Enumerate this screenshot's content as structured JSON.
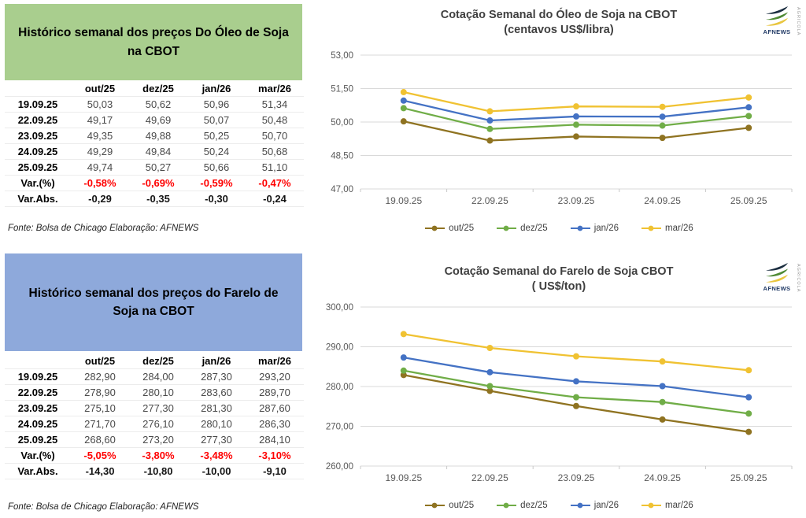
{
  "left_panel": {
    "sections": [
      {
        "header": "Histórico semanal dos preços Do Óleo de Soja na CBOT",
        "header_bg": "#A9CE8E",
        "source_note": "Fonte: Bolsa de Chicago Elaboração: AFNEWS",
        "table": {
          "columns": [
            "",
            "out/25",
            "dez/25",
            "jan/26",
            "mar/26"
          ],
          "rows": [
            {
              "label": "19.09.25",
              "values": [
                "50,03",
                "50,62",
                "50,96",
                "51,34"
              ],
              "style": "val"
            },
            {
              "label": "22.09.25",
              "values": [
                "49,17",
                "49,69",
                "50,07",
                "50,48"
              ],
              "style": "val"
            },
            {
              "label": "23.09.25",
              "values": [
                "49,35",
                "49,88",
                "50,25",
                "50,70"
              ],
              "style": "val"
            },
            {
              "label": "24.09.25",
              "values": [
                "49,29",
                "49,84",
                "50,24",
                "50,68"
              ],
              "style": "val"
            },
            {
              "label": "25.09.25",
              "values": [
                "49,74",
                "50,27",
                "50,66",
                "51,10"
              ],
              "style": "val"
            },
            {
              "label": "Var.(%)",
              "values": [
                "-0,58%",
                "-0,69%",
                "-0,59%",
                "-0,47%"
              ],
              "style": "pct"
            },
            {
              "label": "Var.Abs.",
              "values": [
                "-0,29",
                "-0,35",
                "-0,30",
                "-0,24"
              ],
              "style": "abs"
            }
          ]
        }
      },
      {
        "header": "Histórico semanal dos preços do Farelo de Soja na CBOT",
        "header_bg": "#8EA9DB",
        "source_note": "Fonte: Bolsa de Chicago Elaboração: AFNEWS",
        "table": {
          "columns": [
            "",
            "out/25",
            "dez/25",
            "jan/26",
            "mar/26"
          ],
          "rows": [
            {
              "label": "19.09.25",
              "values": [
                "282,90",
                "284,00",
                "287,30",
                "293,20"
              ],
              "style": "val"
            },
            {
              "label": "22.09.25",
              "values": [
                "278,90",
                "280,10",
                "283,60",
                "289,70"
              ],
              "style": "val"
            },
            {
              "label": "23.09.25",
              "values": [
                "275,10",
                "277,30",
                "281,30",
                "287,60"
              ],
              "style": "val"
            },
            {
              "label": "24.09.25",
              "values": [
                "271,70",
                "276,10",
                "280,10",
                "286,30"
              ],
              "style": "val"
            },
            {
              "label": "25.09.25",
              "values": [
                "268,60",
                "273,20",
                "277,30",
                "284,10"
              ],
              "style": "val"
            },
            {
              "label": "Var.(%)",
              "values": [
                "-5,05%",
                "-3,80%",
                "-3,48%",
                "-3,10%"
              ],
              "style": "pct"
            },
            {
              "label": "Var.Abs.",
              "values": [
                "-14,30",
                "-10,80",
                "-10,00",
                "-9,10"
              ],
              "style": "abs"
            }
          ]
        }
      }
    ],
    "negative_color": "#FF0000"
  },
  "chart_data": [
    {
      "type": "line",
      "title": "Cotação Semanal do Óleo de Soja na CBOT",
      "subtitle": "(centavos US$/libra)",
      "x": [
        "19.09.25",
        "22.09.25",
        "23.09.25",
        "24.09.25",
        "25.09.25"
      ],
      "series": [
        {
          "name": "out/25",
          "color": "#8F7321",
          "values": [
            50.03,
            49.17,
            49.35,
            49.29,
            49.74
          ]
        },
        {
          "name": "dez/25",
          "color": "#70AD47",
          "values": [
            50.62,
            49.69,
            49.88,
            49.84,
            50.27
          ]
        },
        {
          "name": "jan/26",
          "color": "#4472C4",
          "values": [
            50.96,
            50.07,
            50.25,
            50.24,
            50.66
          ]
        },
        {
          "name": "mar/26",
          "color": "#F0C232",
          "values": [
            51.34,
            50.48,
            50.7,
            50.68,
            51.1
          ]
        }
      ],
      "ylim": [
        47,
        53
      ],
      "yticks": [
        47,
        48.5,
        50,
        51.5,
        53
      ],
      "ytick_labels": [
        "47,00",
        "48,50",
        "50,00",
        "51,50",
        "53,00"
      ],
      "grid": true,
      "legend_position": "bottom"
    },
    {
      "type": "line",
      "title": "Cotação Semanal do Farelo de Soja CBOT",
      "subtitle": "( US$/ton)",
      "x": [
        "19.09.25",
        "22.09.25",
        "23.09.25",
        "24.09.25",
        "25.09.25"
      ],
      "series": [
        {
          "name": "out/25",
          "color": "#8F7321",
          "values": [
            282.9,
            278.9,
            275.1,
            271.7,
            268.6
          ]
        },
        {
          "name": "dez/25",
          "color": "#70AD47",
          "values": [
            284.0,
            280.1,
            277.3,
            276.1,
            273.2
          ]
        },
        {
          "name": "jan/26",
          "color": "#4472C4",
          "values": [
            287.3,
            283.6,
            281.3,
            280.1,
            277.3
          ]
        },
        {
          "name": "mar/26",
          "color": "#F0C232",
          "values": [
            293.2,
            289.7,
            287.6,
            286.3,
            284.1
          ]
        }
      ],
      "ylim": [
        260,
        300
      ],
      "yticks": [
        260,
        270,
        280,
        290,
        300
      ],
      "ytick_labels": [
        "260,00",
        "270,00",
        "280,00",
        "290,00",
        "300,00"
      ],
      "grid": true,
      "legend_position": "bottom"
    }
  ],
  "logo": {
    "text": "AFNEWS",
    "vertical_text": "AGRICOLA",
    "leaf_colors": [
      "#1B2E40",
      "#4F8A34",
      "#E9C63F"
    ],
    "text_color": "#1F3864"
  }
}
